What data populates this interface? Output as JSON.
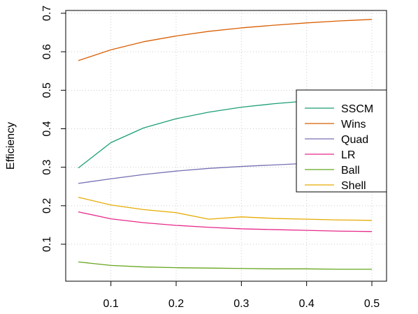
{
  "chart_data": {
    "type": "line",
    "ylabel": "Efficiency",
    "xlabel": "",
    "xlim": [
      0.05,
      0.5
    ],
    "ylim": [
      0.0,
      0.7
    ],
    "x_ticks": [
      "0.1",
      "0.2",
      "0.3",
      "0.4",
      "0.5"
    ],
    "y_ticks": [
      "0.1",
      "0.2",
      "0.3",
      "0.4",
      "0.5",
      "0.6",
      "0.7"
    ],
    "grid": true,
    "legend_position": "right",
    "x": [
      0.05,
      0.1,
      0.15,
      0.2,
      0.25,
      0.3,
      0.35,
      0.4,
      0.45,
      0.5
    ],
    "series": [
      {
        "name": "SSCM",
        "color": "#1b9e77",
        "values": [
          0.298,
          0.364,
          0.402,
          0.426,
          0.443,
          0.456,
          0.465,
          0.472,
          0.478,
          0.483
        ]
      },
      {
        "name": "Wins",
        "color": "#d95f02",
        "values": [
          0.577,
          0.605,
          0.626,
          0.641,
          0.653,
          0.662,
          0.669,
          0.675,
          0.68,
          0.684
        ]
      },
      {
        "name": "Quad",
        "color": "#7570b3",
        "values": [
          0.258,
          0.27,
          0.281,
          0.29,
          0.297,
          0.302,
          0.306,
          0.31,
          0.313,
          0.315
        ]
      },
      {
        "name": "LR",
        "color": "#e7298a",
        "values": [
          0.184,
          0.166,
          0.156,
          0.149,
          0.144,
          0.14,
          0.138,
          0.136,
          0.134,
          0.133
        ]
      },
      {
        "name": "Ball",
        "color": "#66a61e",
        "values": [
          0.054,
          0.045,
          0.041,
          0.039,
          0.038,
          0.037,
          0.036,
          0.036,
          0.035,
          0.035
        ]
      },
      {
        "name": "Shell",
        "color": "#e6ab02",
        "values": [
          0.222,
          0.202,
          0.19,
          0.182,
          0.165,
          0.171,
          0.167,
          0.165,
          0.163,
          0.162
        ]
      }
    ]
  }
}
